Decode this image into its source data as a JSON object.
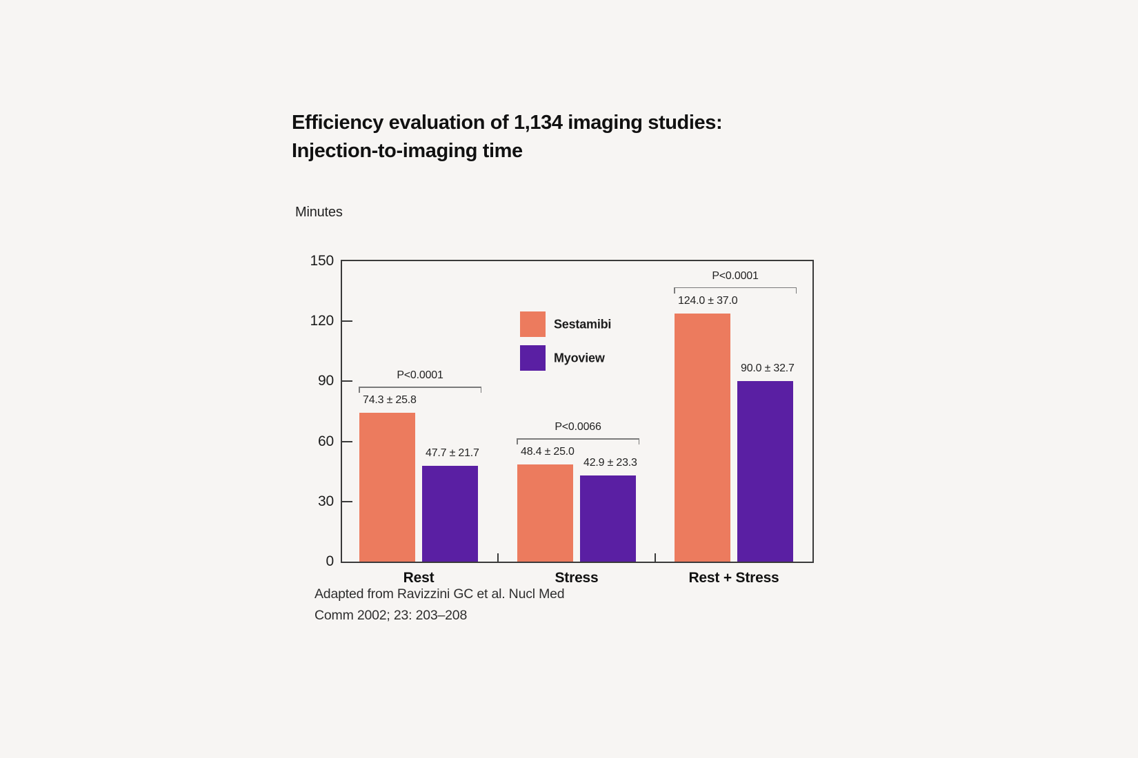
{
  "title": {
    "line1": "Efficiency evaluation of 1,134 imaging studies:",
    "line2": "Injection-to-imaging time"
  },
  "chart_data": {
    "type": "bar",
    "title": "Efficiency evaluation of 1,134 imaging studies: Injection-to-imaging time",
    "ylabel": "Minutes",
    "xlabel": "",
    "ylim": [
      0,
      150
    ],
    "yticks": [
      0,
      30,
      60,
      90,
      120,
      150
    ],
    "grid": false,
    "legend_position": "inside-top-center",
    "categories": [
      "Rest",
      "Stress",
      "Rest + Stress"
    ],
    "series": [
      {
        "name": "Sestamibi",
        "color": "#EC7B5E",
        "values": [
          74.3,
          48.4,
          124.0
        ],
        "std": [
          25.8,
          25.0,
          37.0
        ],
        "labels": [
          "74.3 ± 25.8",
          "48.4 ± 25.0",
          "124.0 ± 37.0"
        ]
      },
      {
        "name": "Myoview",
        "color": "#5A1FA3",
        "values": [
          47.7,
          42.9,
          90.0
        ],
        "std": [
          21.7,
          23.3,
          32.7
        ],
        "labels": [
          "47.7 ± 21.7",
          "42.9 ± 23.3",
          "90.0 ± 32.7"
        ]
      }
    ],
    "p_values": [
      "P<0.0001",
      "P<0.0066",
      "P<0.0001"
    ]
  },
  "citation": {
    "line1": "Adapted from Ravizzini GC et al. Nucl Med",
    "line2": "Comm 2002; 23: 203–208"
  },
  "colors": {
    "background": "#f7f5f3",
    "axis": "#3a3a3a",
    "bracket": "#7a7a7a",
    "sestamibi": "#EC7B5E",
    "myoview": "#5A1FA3"
  }
}
